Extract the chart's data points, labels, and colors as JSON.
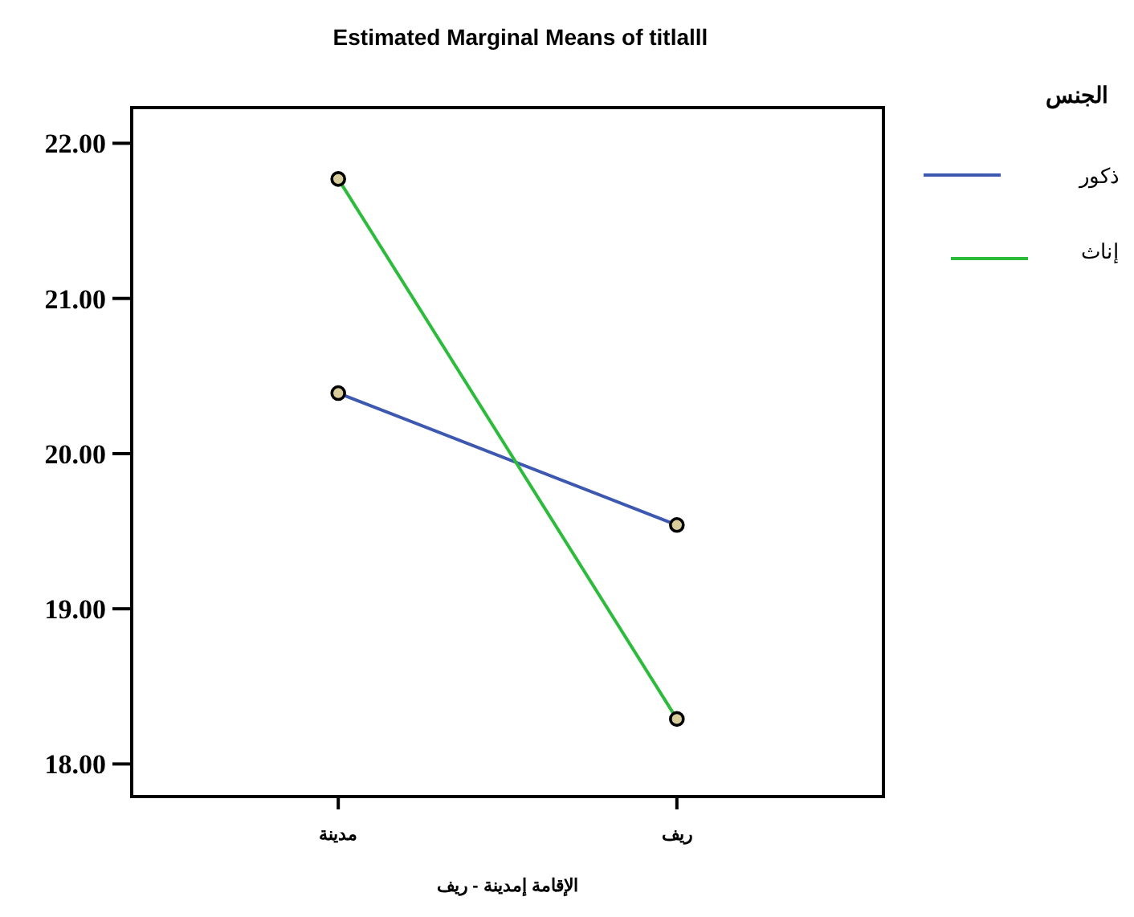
{
  "chart_data": {
    "type": "line",
    "title": "Estimated Marginal Means of titlalll",
    "xlabel": "الإقامة إمدينة - ريف",
    "legend_title": "الجنس",
    "categories": [
      "مدينة",
      "ريف"
    ],
    "series": [
      {
        "name": "ذكور",
        "color": "#3d58b0",
        "values": [
          20.39,
          19.54
        ]
      },
      {
        "name": "إناث",
        "color": "#2dbb3c",
        "values": [
          21.77,
          18.29
        ]
      }
    ],
    "ylim": [
      17.79,
      22.23
    ],
    "yticks": [
      {
        "value": 18,
        "label": "18.00"
      },
      {
        "value": 19,
        "label": "19.00"
      },
      {
        "value": 20,
        "label": "20.00"
      },
      {
        "value": 21,
        "label": "21.00"
      },
      {
        "value": 22,
        "label": "22.00"
      }
    ],
    "grid": false,
    "legend": "top right",
    "marker": "circle",
    "line_style": "solid"
  }
}
